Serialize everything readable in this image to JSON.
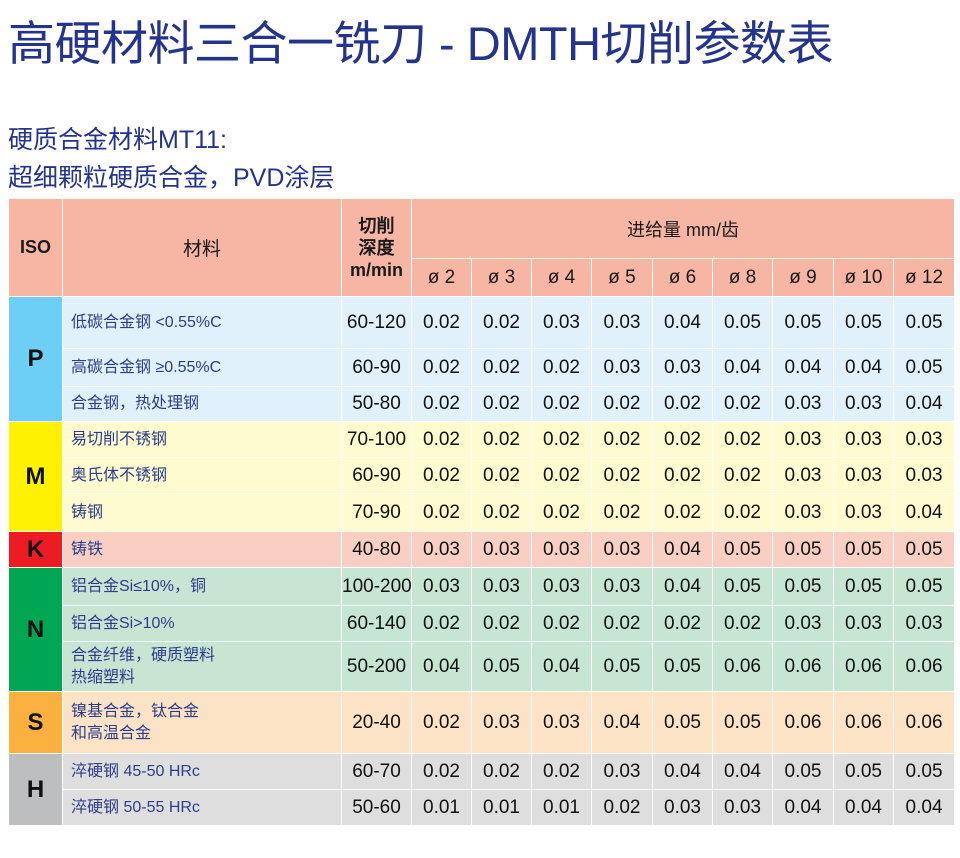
{
  "title": "高硬材料三合一铣刀 - DMTH切削参数表",
  "subtitle_1": "硬质合金材料MT11:",
  "subtitle_2": "超细颗粒硬质合金，PVD涂层",
  "table": {
    "header": {
      "iso": "ISO",
      "material": "材料",
      "depth_line1": "切削",
      "depth_line2": "深度",
      "depth_line3": "m/min",
      "feed": "进给量 mm/齿",
      "diameters": [
        "ø 2",
        "ø 3",
        "ø 4",
        "ø 5",
        "ø 6",
        "ø 8",
        "ø 9",
        "ø 10",
        "ø 12"
      ]
    },
    "groups": [
      {
        "iso": "P",
        "rows": [
          {
            "material": [
              "低碳合金钢  <0.55%C"
            ],
            "depth": "60-120",
            "feeds": [
              "0.02",
              "0.02",
              "0.03",
              "0.03",
              "0.04",
              "0.05",
              "0.05",
              "0.05",
              "0.05"
            ]
          },
          {
            "material": [
              "高碳合金钢  ≥0.55%C"
            ],
            "depth": "60-90",
            "feeds": [
              "0.02",
              "0.02",
              "0.02",
              "0.03",
              "0.03",
              "0.04",
              "0.04",
              "0.04",
              "0.05"
            ]
          },
          {
            "material": [
              "合金钢，热处理钢"
            ],
            "depth": "50-80",
            "feeds": [
              "0.02",
              "0.02",
              "0.02",
              "0.02",
              "0.02",
              "0.02",
              "0.03",
              "0.03",
              "0.04"
            ]
          }
        ]
      },
      {
        "iso": "M",
        "rows": [
          {
            "material": [
              "易切削不锈钢"
            ],
            "depth": "70-100",
            "feeds": [
              "0.02",
              "0.02",
              "0.02",
              "0.02",
              "0.02",
              "0.02",
              "0.03",
              "0.03",
              "0.03"
            ]
          },
          {
            "material": [
              "奥氏体不锈钢"
            ],
            "depth": "60-90",
            "feeds": [
              "0.02",
              "0.02",
              "0.02",
              "0.02",
              "0.02",
              "0.02",
              "0.03",
              "0.03",
              "0.03"
            ]
          },
          {
            "material": [
              "铸钢"
            ],
            "depth": "70-90",
            "feeds": [
              "0.02",
              "0.02",
              "0.02",
              "0.02",
              "0.02",
              "0.02",
              "0.03",
              "0.03",
              "0.04"
            ]
          }
        ]
      },
      {
        "iso": "K",
        "rows": [
          {
            "material": [
              "铸铁"
            ],
            "depth": "40-80",
            "feeds": [
              "0.03",
              "0.03",
              "0.03",
              "0.03",
              "0.04",
              "0.05",
              "0.05",
              "0.05",
              "0.05"
            ]
          }
        ]
      },
      {
        "iso": "N",
        "rows": [
          {
            "material": [
              "铝合金Si≤10%，铜"
            ],
            "depth": "100-200",
            "feeds": [
              "0.03",
              "0.03",
              "0.03",
              "0.03",
              "0.04",
              "0.05",
              "0.05",
              "0.05",
              "0.05"
            ]
          },
          {
            "material": [
              "铝合金Si>10%"
            ],
            "depth": "60-140",
            "feeds": [
              "0.02",
              "0.02",
              "0.02",
              "0.02",
              "0.02",
              "0.02",
              "0.03",
              "0.03",
              "0.03"
            ]
          },
          {
            "material": [
              "合金纤维，硬质塑料",
              "热缩塑料"
            ],
            "depth": "50-200",
            "feeds": [
              "0.04",
              "0.05",
              "0.04",
              "0.05",
              "0.05",
              "0.06",
              "0.06",
              "0.06",
              "0.06"
            ]
          }
        ]
      },
      {
        "iso": "S",
        "rows": [
          {
            "material": [
              "镍基合金，钛合金",
              "和高温合金"
            ],
            "depth": "20-40",
            "feeds": [
              "0.02",
              "0.03",
              "0.03",
              "0.04",
              "0.05",
              "0.05",
              "0.06",
              "0.06",
              "0.06"
            ]
          }
        ]
      },
      {
        "iso": "H",
        "rows": [
          {
            "material": [
              "淬硬钢 45-50 HRc"
            ],
            "depth": "60-70",
            "feeds": [
              "0.02",
              "0.02",
              "0.02",
              "0.03",
              "0.04",
              "0.04",
              "0.05",
              "0.05",
              "0.05"
            ]
          },
          {
            "material": [
              "淬硬钢 50-55 HRc"
            ],
            "depth": "50-60",
            "feeds": [
              "0.01",
              "0.01",
              "0.01",
              "0.02",
              "0.03",
              "0.03",
              "0.04",
              "0.04",
              "0.04"
            ]
          }
        ]
      }
    ]
  }
}
